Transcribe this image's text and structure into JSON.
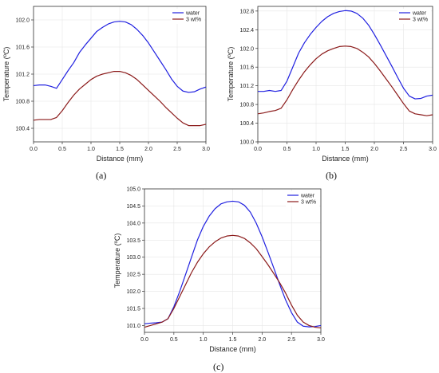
{
  "chart_data": [
    {
      "type": "line",
      "caption": "(a)",
      "xlabel": "Distance (mm)",
      "ylabel": "Temperature (ºC)",
      "xlim": [
        0.0,
        3.0
      ],
      "ylim": [
        100.2,
        102.2
      ],
      "xticks": [
        "0.0",
        "0.5",
        "1.0",
        "1.5",
        "2.0",
        "2.5",
        "3.0"
      ],
      "yticks": [
        "100.4",
        "100.8",
        "101.2",
        "101.6",
        "102.0"
      ],
      "legend_position": "top-right",
      "colors": [
        "#2020e0",
        "#8b1a1a"
      ],
      "series": [
        {
          "name": "water",
          "x": [
            0.0,
            0.1,
            0.2,
            0.3,
            0.4,
            0.5,
            0.6,
            0.7,
            0.8,
            0.9,
            1.0,
            1.1,
            1.2,
            1.3,
            1.4,
            1.5,
            1.6,
            1.7,
            1.8,
            1.9,
            2.0,
            2.1,
            2.2,
            2.3,
            2.4,
            2.5,
            2.6,
            2.7,
            2.8,
            2.9,
            3.0
          ],
          "y": [
            101.03,
            101.04,
            101.04,
            101.02,
            100.99,
            101.12,
            101.25,
            101.37,
            101.52,
            101.63,
            101.73,
            101.83,
            101.89,
            101.94,
            101.97,
            101.98,
            101.97,
            101.93,
            101.86,
            101.77,
            101.66,
            101.53,
            101.4,
            101.27,
            101.13,
            101.02,
            100.95,
            100.93,
            100.94,
            100.98,
            101.01
          ]
        },
        {
          "name": "3 wt%",
          "x": [
            0.0,
            0.1,
            0.2,
            0.3,
            0.4,
            0.5,
            0.6,
            0.7,
            0.8,
            0.9,
            1.0,
            1.1,
            1.2,
            1.3,
            1.4,
            1.5,
            1.6,
            1.7,
            1.8,
            1.9,
            2.0,
            2.1,
            2.2,
            2.3,
            2.4,
            2.5,
            2.6,
            2.7,
            2.8,
            2.9,
            3.0
          ],
          "y": [
            100.52,
            100.53,
            100.53,
            100.53,
            100.56,
            100.66,
            100.78,
            100.89,
            100.98,
            101.05,
            101.12,
            101.17,
            101.2,
            101.22,
            101.24,
            101.24,
            101.22,
            101.18,
            101.12,
            101.04,
            100.96,
            100.88,
            100.8,
            100.71,
            100.63,
            100.55,
            100.48,
            100.44,
            100.44,
            100.44,
            100.46
          ]
        }
      ]
    },
    {
      "type": "line",
      "caption": "(b)",
      "xlabel": "Distance (mm)",
      "ylabel": "Temperature (ºC)",
      "xlim": [
        0.0,
        3.0
      ],
      "ylim": [
        100.0,
        102.9
      ],
      "xticks": [
        "0.0",
        "0.5",
        "1.0",
        "1.5",
        "2.0",
        "2.5",
        "3.0"
      ],
      "yticks": [
        "100.0",
        "100.4",
        "100.8",
        "101.2",
        "101.6",
        "102.0",
        "102.4",
        "102.8"
      ],
      "legend_position": "top-right",
      "colors": [
        "#2020e0",
        "#8b1a1a"
      ],
      "series": [
        {
          "name": "water",
          "x": [
            0.0,
            0.1,
            0.2,
            0.3,
            0.4,
            0.5,
            0.6,
            0.7,
            0.8,
            0.9,
            1.0,
            1.1,
            1.2,
            1.3,
            1.4,
            1.5,
            1.6,
            1.7,
            1.8,
            1.9,
            2.0,
            2.1,
            2.2,
            2.3,
            2.4,
            2.5,
            2.6,
            2.7,
            2.8,
            2.9,
            3.0
          ],
          "y": [
            101.08,
            101.08,
            101.1,
            101.08,
            101.1,
            101.3,
            101.6,
            101.9,
            102.12,
            102.3,
            102.45,
            102.58,
            102.68,
            102.75,
            102.79,
            102.81,
            102.8,
            102.75,
            102.65,
            102.5,
            102.3,
            102.08,
            101.85,
            101.62,
            101.38,
            101.15,
            100.98,
            100.92,
            100.93,
            100.98,
            101.0
          ]
        },
        {
          "name": "3 wt%",
          "x": [
            0.0,
            0.1,
            0.2,
            0.3,
            0.4,
            0.5,
            0.6,
            0.7,
            0.8,
            0.9,
            1.0,
            1.1,
            1.2,
            1.3,
            1.4,
            1.5,
            1.6,
            1.7,
            1.8,
            1.9,
            2.0,
            2.1,
            2.2,
            2.3,
            2.4,
            2.5,
            2.6,
            2.7,
            2.8,
            2.9,
            3.0
          ],
          "y": [
            100.6,
            100.62,
            100.65,
            100.67,
            100.72,
            100.9,
            101.12,
            101.32,
            101.5,
            101.65,
            101.78,
            101.88,
            101.95,
            102.0,
            102.04,
            102.05,
            102.04,
            102.0,
            101.92,
            101.82,
            101.68,
            101.52,
            101.35,
            101.18,
            101.0,
            100.82,
            100.66,
            100.6,
            100.58,
            100.56,
            100.58
          ]
        }
      ]
    },
    {
      "type": "line",
      "caption": "(c)",
      "xlabel": "Distance (mm)",
      "ylabel": "Temperature (ºC)",
      "xlim": [
        0.0,
        3.0
      ],
      "ylim": [
        100.8,
        105.0
      ],
      "xticks": [
        "0.0",
        "0.5",
        "1.0",
        "1.5",
        "2.0",
        "2.5",
        "3.0"
      ],
      "yticks": [
        "101.0",
        "101.5",
        "102.0",
        "102.5",
        "103.0",
        "103.5",
        "104.0",
        "104.5",
        "105.0"
      ],
      "legend_position": "top-right",
      "colors": [
        "#2020e0",
        "#8b1a1a"
      ],
      "series": [
        {
          "name": "water",
          "x": [
            0.0,
            0.1,
            0.2,
            0.3,
            0.4,
            0.5,
            0.6,
            0.7,
            0.8,
            0.9,
            1.0,
            1.1,
            1.2,
            1.3,
            1.4,
            1.5,
            1.6,
            1.7,
            1.8,
            1.9,
            2.0,
            2.1,
            2.2,
            2.3,
            2.4,
            2.5,
            2.6,
            2.7,
            2.8,
            2.9,
            3.0
          ],
          "y": [
            101.05,
            101.07,
            101.08,
            101.1,
            101.2,
            101.55,
            102.0,
            102.5,
            103.0,
            103.5,
            103.9,
            104.2,
            104.42,
            104.56,
            104.62,
            104.64,
            104.62,
            104.52,
            104.32,
            104.0,
            103.6,
            103.15,
            102.68,
            102.2,
            101.75,
            101.38,
            101.1,
            100.98,
            100.96,
            100.97,
            101.0
          ]
        },
        {
          "name": "3 wt%",
          "x": [
            0.0,
            0.1,
            0.2,
            0.3,
            0.4,
            0.5,
            0.6,
            0.7,
            0.8,
            0.9,
            1.0,
            1.1,
            1.2,
            1.3,
            1.4,
            1.5,
            1.6,
            1.7,
            1.8,
            1.9,
            2.0,
            2.1,
            2.2,
            2.3,
            2.4,
            2.5,
            2.6,
            2.7,
            2.8,
            2.9,
            3.0
          ],
          "y": [
            100.95,
            101.0,
            101.05,
            101.1,
            101.2,
            101.5,
            101.85,
            102.2,
            102.55,
            102.85,
            103.1,
            103.3,
            103.45,
            103.56,
            103.62,
            103.64,
            103.62,
            103.55,
            103.42,
            103.25,
            103.02,
            102.78,
            102.52,
            102.25,
            101.95,
            101.6,
            101.3,
            101.1,
            101.0,
            100.95,
            100.93
          ]
        }
      ]
    }
  ]
}
